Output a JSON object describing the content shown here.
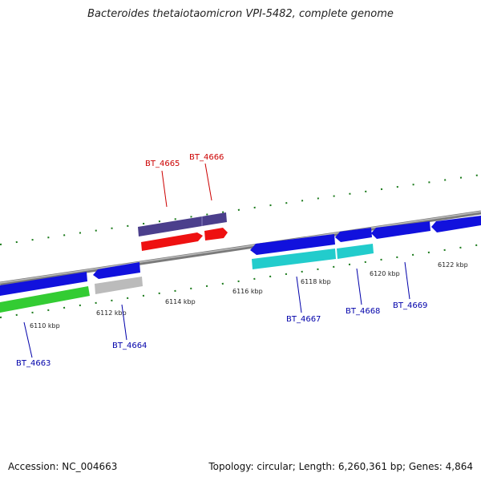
{
  "title": "Bacteroides thetaiotaomicron VPI-5482, complete genome",
  "footer": {
    "accession": "Accession: NC_004663",
    "summary": "Topology: circular; Length: 6,260,361 bp; Genes: 4,864"
  },
  "colors": {
    "backbone": "#8a8a8a",
    "tick": "#1a7a1a",
    "label_red": "#cc0000",
    "label_blue": "#0000aa"
  },
  "scale_labels": [
    "6110 kbp",
    "6112 kbp",
    "6114 kbp",
    "6116 kbp",
    "6118 kbp",
    "6120 kbp",
    "6122 kbp"
  ],
  "genes": [
    {
      "id": "BT_4663",
      "strand": "lower"
    },
    {
      "id": "BT_4664",
      "strand": "lower"
    },
    {
      "id": "BT_4665",
      "strand": "upper"
    },
    {
      "id": "BT_4666",
      "strand": "upper"
    },
    {
      "id": "BT_4667",
      "strand": "lower"
    },
    {
      "id": "BT_4668",
      "strand": "lower"
    },
    {
      "id": "BT_4669",
      "strand": "lower"
    }
  ]
}
